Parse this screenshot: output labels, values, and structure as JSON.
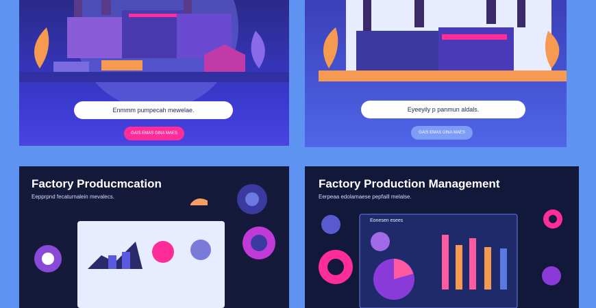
{
  "panels": [
    {
      "pill_text": "Enmmm pumpecah mewelae.",
      "button_text": "GAIS EMAS GINA MAES",
      "button_color": "#ff2d9a"
    },
    {
      "pill_text": "Eyeeyily p panmun aldals.",
      "button_text": "GAIS EMAS GINA MAES",
      "button_color": "#7c9cf5"
    },
    {
      "title": "Factory Producmcation",
      "subtitle": "Eepprpnd fecaturnalein mevalecs."
    },
    {
      "title": "Factory Production Management",
      "subtitle": "Eerpeaa edolamaese pepfaill melalse.",
      "chart_label": "Eonesen esees"
    }
  ],
  "colors": {
    "background": "#5e93f2",
    "accent_pink": "#ff2d9a",
    "accent_orange": "#f59a50",
    "dark_panel": "#161a3a"
  }
}
